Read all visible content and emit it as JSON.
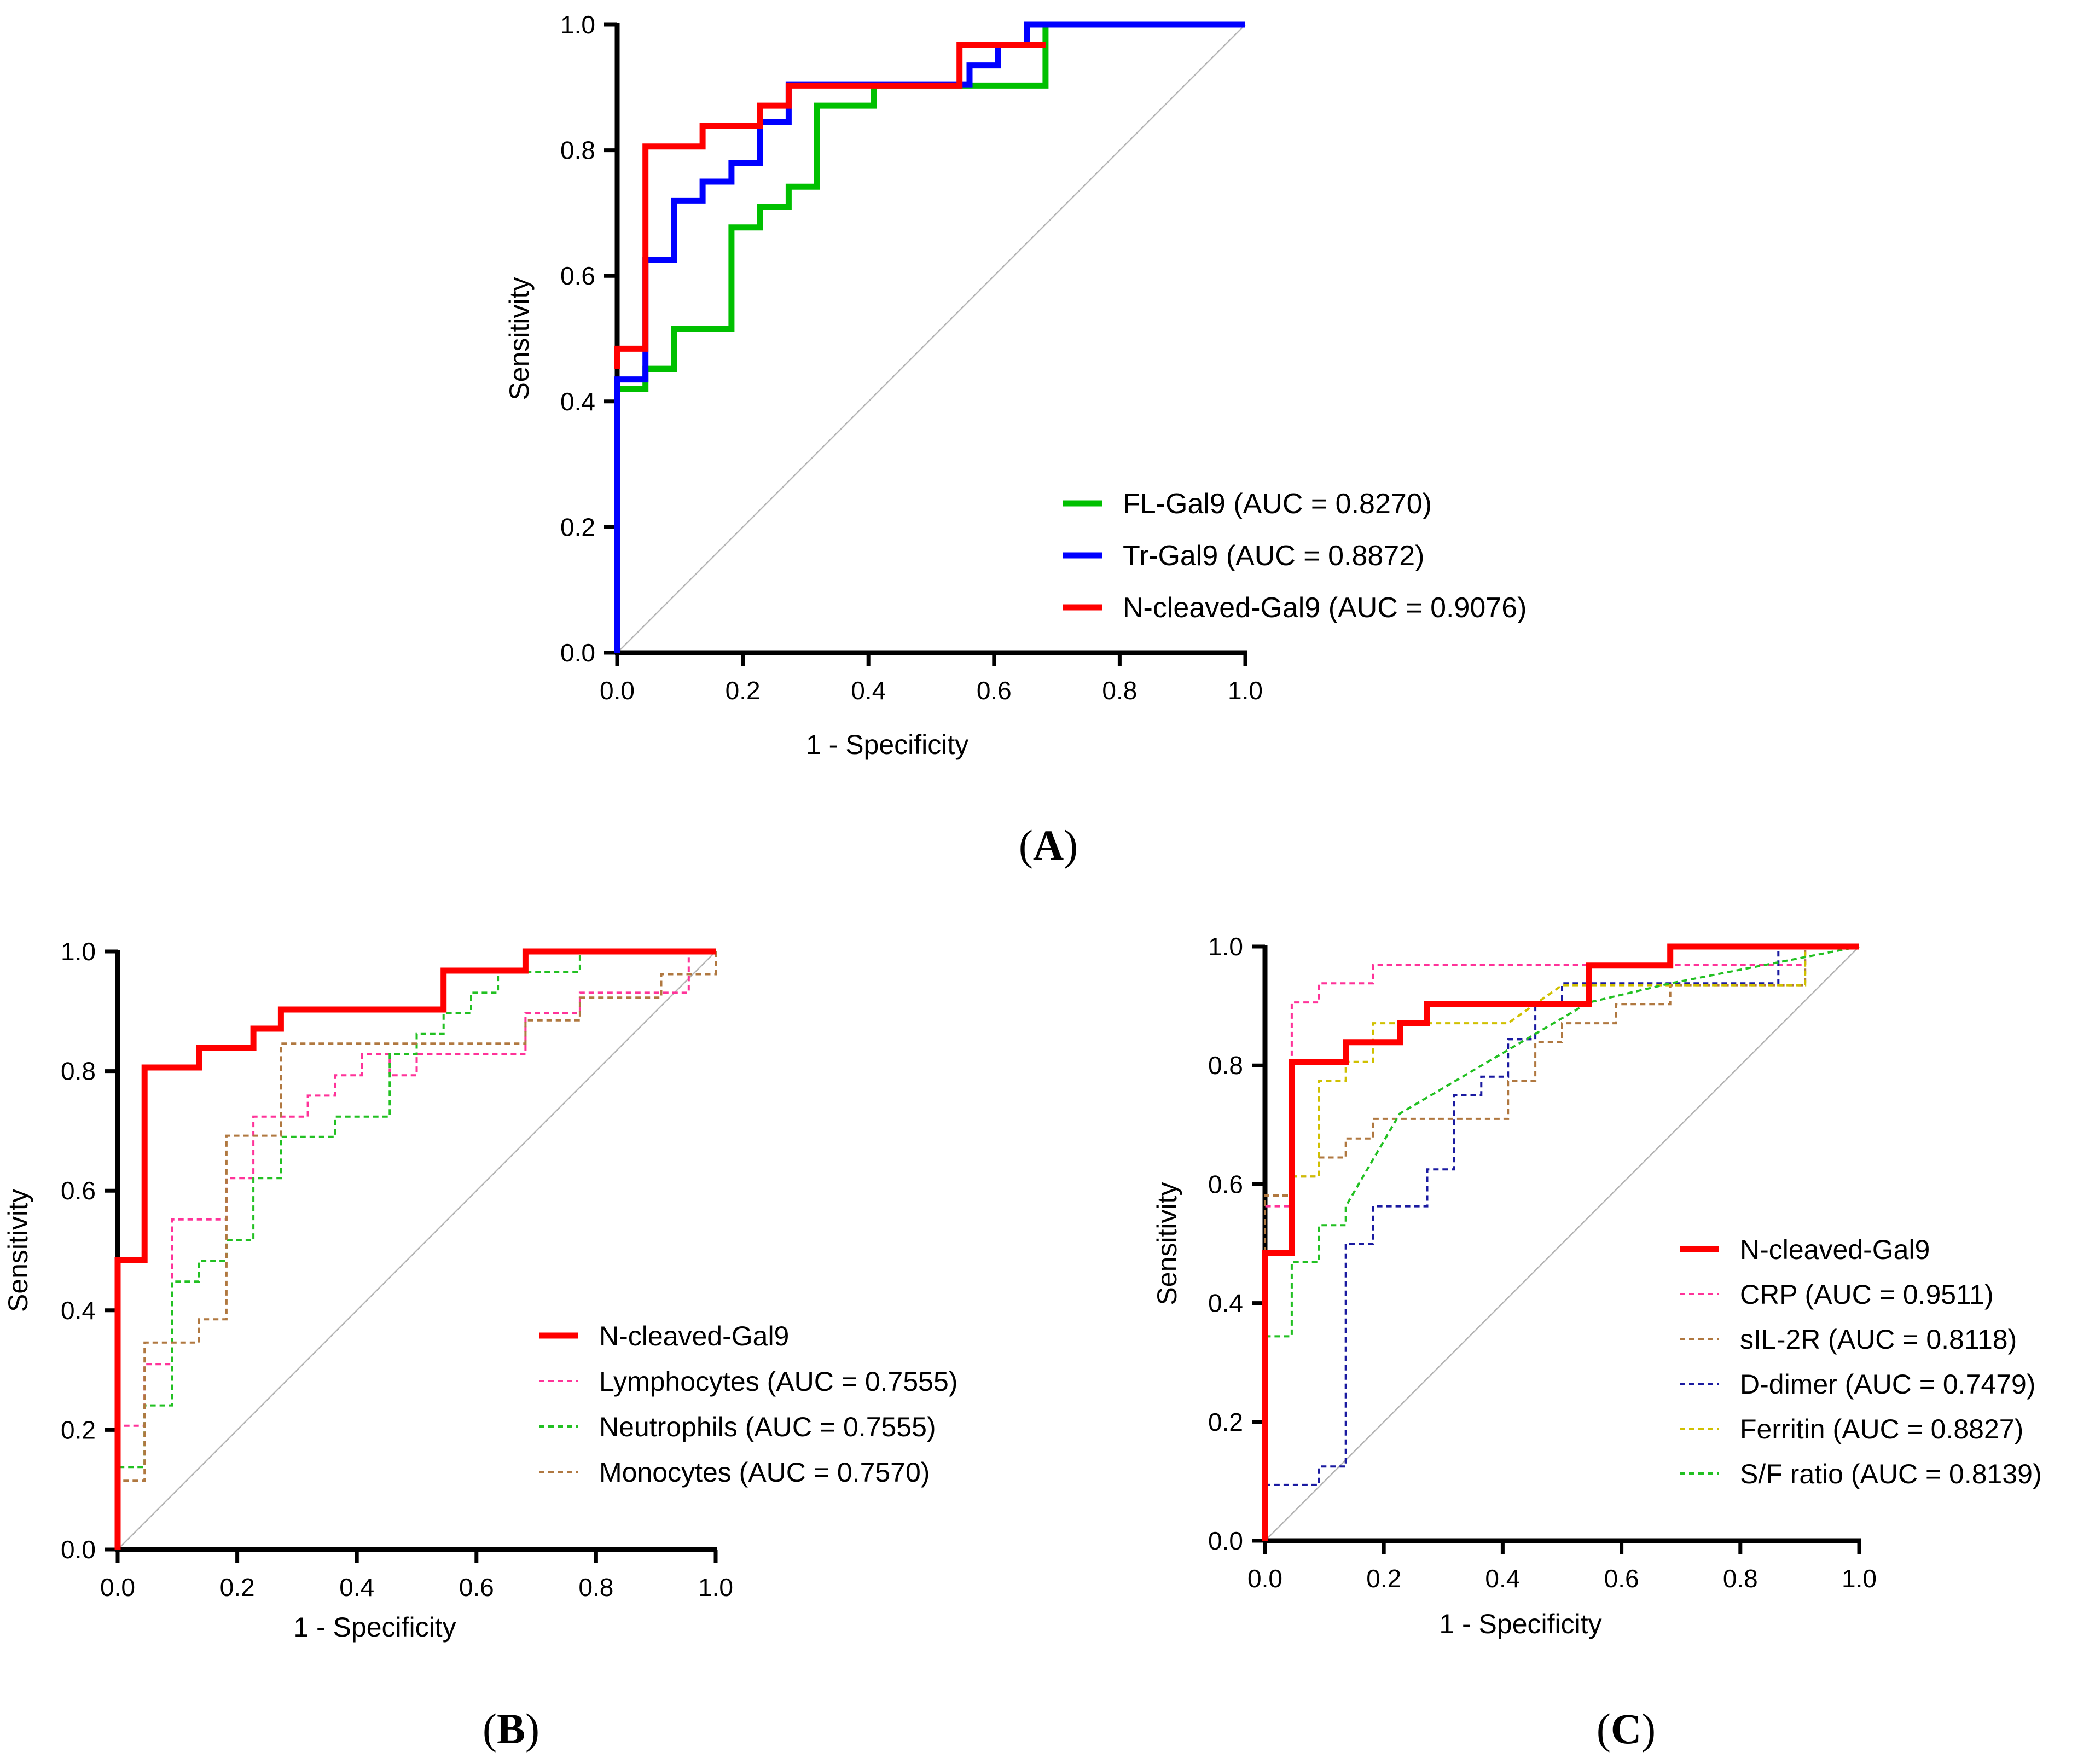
{
  "colors": {
    "red": "#ff0000",
    "blue": "#0000ff",
    "green": "#00c000",
    "pink": "#ff3399",
    "brown": "#b07840",
    "navy": "#1a1aa0",
    "yellow": "#d0c000",
    "ltgreen": "#22c022",
    "ref": "#b4b4b4"
  },
  "panel_labels": [
    {
      "id": "A",
      "open": "(",
      "letter": "A",
      "close": ")"
    },
    {
      "id": "B",
      "open": "(",
      "letter": "B",
      "close": ")"
    },
    {
      "id": "C",
      "open": "(",
      "letter": "C",
      "close": ")"
    }
  ],
  "chart_data": [
    {
      "id": "A",
      "type": "line",
      "title": "",
      "xlabel": "1 - Specificity",
      "ylabel": "Sensitivity",
      "xlim": [
        0,
        1
      ],
      "ylim": [
        0,
        1
      ],
      "xticks": [
        "0.0",
        "0.2",
        "0.4",
        "0.6",
        "0.8",
        "1.0"
      ],
      "yticks": [
        "0.0",
        "0.2",
        "0.4",
        "0.6",
        "0.8",
        "1.0"
      ],
      "legend_position": "bottom-right",
      "series": [
        {
          "name": "FL-Gal9 (AUC = 0.8270)",
          "color": "green",
          "dash": "solid",
          "x": [
            0,
            0,
            0.045,
            0.045,
            0.091,
            0.091,
            0.182,
            0.182,
            0.227,
            0.227,
            0.273,
            0.273,
            0.318,
            0.318,
            0.409,
            0.409,
            0.682,
            0.682,
            1.0
          ],
          "y": [
            0.42,
            0.42,
            0.42,
            0.452,
            0.452,
            0.516,
            0.516,
            0.677,
            0.677,
            0.71,
            0.71,
            0.742,
            0.742,
            0.871,
            0.871,
            0.903,
            0.903,
            1.0,
            1.0
          ]
        },
        {
          "name": "Tr-Gal9 (AUC = 0.8872)",
          "color": "blue",
          "dash": "solid",
          "x": [
            0,
            0,
            0.045,
            0.045,
            0.091,
            0.091,
            0.136,
            0.136,
            0.182,
            0.182,
            0.227,
            0.227,
            0.273,
            0.273,
            0.561,
            0.561,
            0.606,
            0.606,
            0.652,
            0.652,
            1.0
          ],
          "y": [
            0,
            0.435,
            0.435,
            0.625,
            0.625,
            0.72,
            0.72,
            0.75,
            0.75,
            0.78,
            0.78,
            0.845,
            0.845,
            0.905,
            0.905,
            0.935,
            0.935,
            0.968,
            0.968,
            1.0,
            1.0
          ]
        },
        {
          "name": "N-cleaved-Gal9 (AUC = 0.9076)",
          "color": "red",
          "dash": "solid",
          "x": [
            0,
            0,
            0.045,
            0.045,
            0.136,
            0.136,
            0.227,
            0.227,
            0.273,
            0.273,
            0.545,
            0.545,
            0.682
          ],
          "y": [
            0.452,
            0.484,
            0.484,
            0.806,
            0.806,
            0.839,
            0.839,
            0.871,
            0.871,
            0.903,
            0.903,
            0.968,
            0.968
          ]
        }
      ]
    },
    {
      "id": "B",
      "type": "line",
      "title": "",
      "xlabel": "1 - Specificity",
      "ylabel": "Sensitivity",
      "xlim": [
        0,
        1
      ],
      "ylim": [
        0,
        1
      ],
      "xticks": [
        "0.0",
        "0.2",
        "0.4",
        "0.6",
        "0.8",
        "1.0"
      ],
      "yticks": [
        "0.0",
        "0.2",
        "0.4",
        "0.6",
        "0.8",
        "1.0"
      ],
      "legend_position": "bottom-right",
      "series": [
        {
          "name": "N-cleaved-Gal9",
          "color": "red",
          "dash": "solid",
          "x": [
            0,
            0,
            0.045,
            0.045,
            0.136,
            0.136,
            0.227,
            0.227,
            0.273,
            0.273,
            0.545,
            0.545,
            0.682,
            0.682,
            1.0
          ],
          "y": [
            0,
            0.484,
            0.484,
            0.806,
            0.806,
            0.839,
            0.839,
            0.871,
            0.871,
            0.903,
            0.903,
            0.968,
            0.968,
            1.0,
            1.0
          ]
        },
        {
          "name": "Lymphocytes (AUC = 0.7555)",
          "color": "pink",
          "dash": "dashed",
          "x": [
            0,
            0,
            0.045,
            0.045,
            0.091,
            0.091,
            0.182,
            0.182,
            0.227,
            0.227,
            0.318,
            0.318,
            0.364,
            0.364,
            0.409,
            0.409,
            0.455,
            0.455,
            0.5,
            0.5,
            0.682,
            0.682,
            0.773,
            0.773,
            0.955,
            0.955,
            1.0
          ],
          "y": [
            0,
            0.207,
            0.207,
            0.31,
            0.31,
            0.552,
            0.552,
            0.621,
            0.621,
            0.724,
            0.724,
            0.759,
            0.759,
            0.793,
            0.793,
            0.828,
            0.828,
            0.793,
            0.793,
            0.828,
            0.828,
            0.897,
            0.897,
            0.931,
            0.931,
            1.0,
            1.0
          ]
        },
        {
          "name": "Neutrophils (AUC = 0.7555)",
          "color": "ltgreen",
          "dash": "dashed",
          "x": [
            0,
            0,
            0.045,
            0.045,
            0.091,
            0.091,
            0.136,
            0.136,
            0.182,
            0.182,
            0.227,
            0.227,
            0.273,
            0.273,
            0.364,
            0.364,
            0.455,
            0.455,
            0.5,
            0.5,
            0.545,
            0.545,
            0.591,
            0.591,
            0.636,
            0.636,
            0.682,
            0.682,
            0.773,
            0.773,
            1.0
          ],
          "y": [
            0,
            0.138,
            0.138,
            0.241,
            0.241,
            0.448,
            0.448,
            0.483,
            0.483,
            0.517,
            0.517,
            0.621,
            0.621,
            0.69,
            0.69,
            0.724,
            0.724,
            0.828,
            0.828,
            0.862,
            0.862,
            0.897,
            0.897,
            0.931,
            0.931,
            0.966,
            0.966,
            0.966,
            0.966,
            1.0,
            1.0
          ]
        },
        {
          "name": "Monocytes (AUC = 0.7570)",
          "color": "brown",
          "dash": "dashed",
          "x": [
            0,
            0,
            0.045,
            0.045,
            0.136,
            0.136,
            0.182,
            0.182,
            0.273,
            0.273,
            0.682,
            0.682,
            0.773,
            0.773,
            0.909,
            0.909,
            1.0,
            1.0
          ],
          "y": [
            0,
            0.115,
            0.115,
            0.346,
            0.346,
            0.385,
            0.385,
            0.692,
            0.692,
            0.846,
            0.846,
            0.885,
            0.885,
            0.923,
            0.923,
            0.962,
            0.962,
            1.0
          ]
        }
      ]
    },
    {
      "id": "C",
      "type": "line",
      "title": "",
      "xlabel": "1 - Specificity",
      "ylabel": "Sensitivity",
      "xlim": [
        0,
        1
      ],
      "ylim": [
        0,
        1
      ],
      "xticks": [
        "0.0",
        "0.2",
        "0.4",
        "0.6",
        "0.8",
        "1.0"
      ],
      "yticks": [
        "0.0",
        "0.2",
        "0.4",
        "0.6",
        "0.8",
        "1.0"
      ],
      "legend_position": "bottom-right",
      "series": [
        {
          "name": "N-cleaved-Gal9",
          "color": "red",
          "dash": "solid",
          "x": [
            0,
            0,
            0.045,
            0.045,
            0.136,
            0.136,
            0.227,
            0.227,
            0.273,
            0.273,
            0.545,
            0.545,
            0.682,
            0.682,
            1.0
          ],
          "y": [
            0,
            0.484,
            0.484,
            0.806,
            0.806,
            0.839,
            0.839,
            0.871,
            0.871,
            0.903,
            0.903,
            0.968,
            0.968,
            1.0,
            1.0
          ]
        },
        {
          "name": "CRP (AUC = 0.9511)",
          "color": "pink",
          "dash": "dashed",
          "x": [
            0,
            0,
            0.045,
            0.045,
            0.091,
            0.091,
            0.182,
            0.182,
            0.909,
            0.909,
            1.0
          ],
          "y": [
            0,
            0.563,
            0.563,
            0.906,
            0.906,
            0.938,
            0.938,
            0.969,
            0.969,
            1.0,
            1.0
          ]
        },
        {
          "name": "sIL-2R (AUC = 0.8118)",
          "color": "brown",
          "dash": "dashed",
          "x": [
            0,
            0,
            0.045,
            0.045,
            0.091,
            0.091,
            0.136,
            0.136,
            0.182,
            0.182,
            0.409,
            0.409,
            0.455,
            0.455,
            0.5,
            0.5,
            0.591,
            0.591,
            0.682,
            0.682,
            0.909,
            0.909,
            1.0
          ],
          "y": [
            0,
            0.581,
            0.581,
            0.613,
            0.613,
            0.645,
            0.645,
            0.677,
            0.677,
            0.71,
            0.71,
            0.774,
            0.774,
            0.839,
            0.839,
            0.871,
            0.871,
            0.903,
            0.903,
            0.935,
            0.935,
            1.0,
            1.0
          ]
        },
        {
          "name": "D-dimer (AUC = 0.7479)",
          "color": "navy",
          "dash": "dashed",
          "x": [
            0,
            0,
            0.091,
            0.091,
            0.136,
            0.136,
            0.182,
            0.182,
            0.273,
            0.273,
            0.318,
            0.318,
            0.364,
            0.364,
            0.409,
            0.409,
            0.455,
            0.455,
            0.5,
            0.5,
            0.864,
            0.864,
            1.0
          ],
          "y": [
            0,
            0.094,
            0.094,
            0.125,
            0.125,
            0.5,
            0.5,
            0.563,
            0.563,
            0.625,
            0.625,
            0.75,
            0.75,
            0.781,
            0.781,
            0.844,
            0.844,
            0.906,
            0.906,
            0.938,
            0.938,
            1.0,
            1.0
          ]
        },
        {
          "name": "Ferritin (AUC = 0.8827)",
          "color": "yellow",
          "dash": "dashed",
          "x": [
            0,
            0,
            0.045,
            0.045,
            0.091,
            0.091,
            0.136,
            0.136,
            0.182,
            0.182,
            0.409,
            0.5,
            0.909,
            0.909,
            1.0
          ],
          "y": [
            0,
            0.484,
            0.484,
            0.613,
            0.613,
            0.774,
            0.774,
            0.806,
            0.806,
            0.871,
            0.871,
            0.935,
            0.935,
            1.0,
            1.0
          ]
        },
        {
          "name": "S/F ratio (AUC = 0.8139)",
          "color": "ltgreen",
          "dash": "dashed",
          "x": [
            0,
            0,
            0.045,
            0.045,
            0.091,
            0.091,
            0.136,
            0.136,
            0.227,
            0.545,
            0.682,
            1.0
          ],
          "y": [
            0,
            0.344,
            0.344,
            0.469,
            0.469,
            0.531,
            0.531,
            0.563,
            0.719,
            0.906,
            0.938,
            1.0
          ]
        }
      ]
    }
  ]
}
